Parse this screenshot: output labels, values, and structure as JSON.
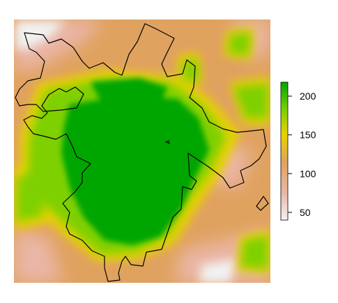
{
  "map": {
    "type": "raster-elevation-map",
    "grid": false,
    "colors": {
      "low": "#f2f2f2",
      "low_mid": "#eab6a6",
      "mid": "#e0a25f",
      "mid_high": "#e8d200",
      "high_mid": "#7ed000",
      "high": "#00a600",
      "boundary": "#000000"
    }
  },
  "legend": {
    "placement": "right",
    "range": [
      40,
      218
    ],
    "ticks": [
      {
        "value": 50,
        "label": "50"
      },
      {
        "value": 100,
        "label": "100"
      },
      {
        "value": 150,
        "label": "150"
      },
      {
        "value": 200,
        "label": "200"
      }
    ]
  }
}
